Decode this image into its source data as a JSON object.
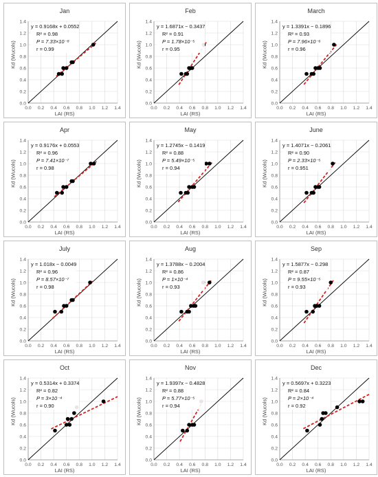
{
  "axis_labels": {
    "x": "LAI (RS)",
    "y": "Kd (Wucols)"
  },
  "chart_data": [
    {
      "type": "scatter",
      "title": "Jan",
      "eq": "y = 0.9168x + 0.0552",
      "r2": "R² = 0.98",
      "p": "P = 7.33×10⁻⁸",
      "r": "r = 0.99",
      "slope": 0.9168,
      "intercept": 0.0552,
      "points": [
        [
          0.48,
          0.5
        ],
        [
          0.53,
          0.5
        ],
        [
          0.55,
          0.6
        ],
        [
          0.6,
          0.6
        ],
        [
          0.68,
          0.7
        ],
        [
          0.7,
          0.7
        ],
        [
          1.02,
          1.0
        ]
      ],
      "xlim": [
        0,
        1.4
      ],
      "ylim": [
        0,
        1.4
      ]
    },
    {
      "type": "scatter",
      "title": "Feb",
      "eq": "y = 1.6871x − 0.3437",
      "r2": "R² = 0.91",
      "p": "P = 1.78×10⁻⁵",
      "r": "r = 0.95",
      "slope": 1.6871,
      "intercept": -0.3437,
      "points": [
        [
          0.43,
          0.5
        ],
        [
          0.5,
          0.5
        ],
        [
          0.52,
          0.5
        ],
        [
          0.55,
          0.6
        ],
        [
          0.58,
          0.6
        ],
        [
          0.6,
          0.6
        ],
        [
          0.78,
          1.0
        ]
      ],
      "xlim": [
        0,
        1.4
      ],
      "ylim": [
        0,
        1.4
      ]
    },
    {
      "type": "scatter",
      "title": "March",
      "eq": "y = 1.3391x − 0.1896",
      "r2": "R² = 0.93",
      "p": "P = 7.96×10⁻⁶",
      "r": "r = 0.96",
      "slope": 1.3391,
      "intercept": -0.1896,
      "points": [
        [
          0.42,
          0.5
        ],
        [
          0.5,
          0.5
        ],
        [
          0.53,
          0.5
        ],
        [
          0.56,
          0.6
        ],
        [
          0.6,
          0.6
        ],
        [
          0.63,
          0.6
        ],
        [
          0.85,
          1.0
        ]
      ],
      "xlim": [
        0,
        1.4
      ],
      "ylim": [
        0,
        1.4
      ]
    },
    {
      "type": "scatter",
      "title": "Apr",
      "eq": "y = 0.9176x + 0.0553",
      "r2": "R² = 0.96",
      "p": "P = 7.41×10⁻⁷",
      "r": "r = 0.98",
      "slope": 0.9176,
      "intercept": 0.0553,
      "points": [
        [
          0.45,
          0.5
        ],
        [
          0.53,
          0.5
        ],
        [
          0.55,
          0.6
        ],
        [
          0.6,
          0.6
        ],
        [
          0.68,
          0.7
        ],
        [
          0.7,
          0.7
        ],
        [
          0.98,
          1.0
        ],
        [
          1.03,
          1.0
        ]
      ],
      "xlim": [
        0,
        1.4
      ],
      "ylim": [
        0,
        1.4
      ]
    },
    {
      "type": "scatter",
      "title": "May",
      "eq": "y = 1.2745x − 0.1419",
      "r2": "R² = 0.88",
      "p": "P = 5.49×10⁻⁵",
      "r": "r = 0.94",
      "slope": 1.2745,
      "intercept": -0.1419,
      "points": [
        [
          0.42,
          0.5
        ],
        [
          0.5,
          0.5
        ],
        [
          0.53,
          0.5
        ],
        [
          0.55,
          0.6
        ],
        [
          0.6,
          0.6
        ],
        [
          0.63,
          0.6
        ],
        [
          0.82,
          1.0
        ],
        [
          0.87,
          1.0
        ]
      ],
      "xlim": [
        0,
        1.4
      ],
      "ylim": [
        0,
        1.4
      ]
    },
    {
      "type": "scatter",
      "title": "June",
      "eq": "y = 1.4071x − 0.2061",
      "r2": "R² = 0.90",
      "p": "P = 2.33×10⁻⁵",
      "r": "r = 0.951",
      "slope": 1.4071,
      "intercept": -0.2061,
      "points": [
        [
          0.42,
          0.5
        ],
        [
          0.5,
          0.5
        ],
        [
          0.53,
          0.5
        ],
        [
          0.56,
          0.6
        ],
        [
          0.6,
          0.6
        ],
        [
          0.62,
          0.6
        ],
        [
          0.83,
          1.0
        ]
      ],
      "xlim": [
        0,
        1.4
      ],
      "ylim": [
        0,
        1.4
      ]
    },
    {
      "type": "scatter",
      "title": "July",
      "eq": "y = 1.018x − 0.0049",
      "r2": "R² = 0.96",
      "p": "P = 8.57×10⁻⁷",
      "r": "r = 0.98",
      "slope": 1.018,
      "intercept": -0.0049,
      "points": [
        [
          0.42,
          0.5
        ],
        [
          0.52,
          0.5
        ],
        [
          0.56,
          0.6
        ],
        [
          0.6,
          0.6
        ],
        [
          0.68,
          0.7
        ],
        [
          0.7,
          0.7
        ],
        [
          0.97,
          1.0
        ]
      ],
      "xlim": [
        0,
        1.4
      ],
      "ylim": [
        0,
        1.4
      ]
    },
    {
      "type": "scatter",
      "title": "Aug",
      "eq": "y = 1.3788x − 0.2004",
      "r2": "R² = 0.86",
      "p": "P = 1×10⁻⁴",
      "r": "r = 0.93",
      "slope": 1.3788,
      "intercept": -0.2004,
      "points": [
        [
          0.43,
          0.5
        ],
        [
          0.52,
          0.5
        ],
        [
          0.55,
          0.5
        ],
        [
          0.58,
          0.6
        ],
        [
          0.62,
          0.6
        ],
        [
          0.65,
          0.6
        ],
        [
          0.77,
          1.0
        ],
        [
          0.87,
          1.0
        ]
      ],
      "xlim": [
        0,
        1.4
      ],
      "ylim": [
        0,
        1.4
      ]
    },
    {
      "type": "scatter",
      "title": "Sep",
      "eq": "y = 1.5877x − 0.298",
      "r2": "R² = 0.87",
      "p": "P = 9.55×10⁻⁵",
      "r": "r = 0.93",
      "slope": 1.5877,
      "intercept": -0.298,
      "points": [
        [
          0.42,
          0.5
        ],
        [
          0.52,
          0.5
        ],
        [
          0.55,
          0.6
        ],
        [
          0.58,
          0.6
        ],
        [
          0.62,
          0.6
        ],
        [
          0.8,
          1.0
        ]
      ],
      "xlim": [
        0,
        1.4
      ],
      "ylim": [
        0,
        1.4
      ]
    },
    {
      "type": "scatter",
      "title": "Oct",
      "eq": "y = 0.5314x + 0.3374",
      "r2": "R² = 0.82",
      "p": "P = 3×10⁻⁴",
      "r": "r = 0.90",
      "slope": 0.5314,
      "intercept": 0.3374,
      "points": [
        [
          0.42,
          0.5
        ],
        [
          0.6,
          0.6
        ],
        [
          0.62,
          0.7
        ],
        [
          0.65,
          0.6
        ],
        [
          0.68,
          0.7
        ],
        [
          0.72,
          0.8
        ],
        [
          0.76,
          0.9
        ],
        [
          1.18,
          1.0
        ]
      ],
      "xlim": [
        0,
        1.4
      ],
      "ylim": [
        0,
        1.4
      ]
    },
    {
      "type": "scatter",
      "title": "Nov",
      "eq": "y = 1.9397x − 0.4828",
      "r2": "R² = 0.88",
      "p": "P = 5.77×10⁻⁵",
      "r": "r = 0.94",
      "slope": 1.9397,
      "intercept": -0.4828,
      "points": [
        [
          0.45,
          0.5
        ],
        [
          0.52,
          0.5
        ],
        [
          0.55,
          0.6
        ],
        [
          0.6,
          0.6
        ],
        [
          0.63,
          0.6
        ],
        [
          0.74,
          1.0
        ]
      ],
      "xlim": [
        0,
        1.4
      ],
      "ylim": [
        0,
        1.4
      ]
    },
    {
      "type": "scatter",
      "title": "Dec",
      "eq": "y = 0.5697x + 0.3223",
      "r2": "R² = 0.84",
      "p": "P = 2×10⁻⁴",
      "r": "r = 0.92",
      "slope": 0.5697,
      "intercept": 0.3223,
      "points": [
        [
          0.43,
          0.5
        ],
        [
          0.63,
          0.6
        ],
        [
          0.66,
          0.7
        ],
        [
          0.68,
          0.8
        ],
        [
          0.72,
          0.8
        ],
        [
          0.9,
          0.9
        ],
        [
          1.25,
          1.0
        ],
        [
          1.3,
          1.0
        ]
      ],
      "xlim": [
        0,
        1.4
      ],
      "ylim": [
        0,
        1.4
      ]
    }
  ],
  "style": {
    "point_color": "#000000",
    "trend_color": "#d42020",
    "identity_color": "#000000",
    "grid_color": "#d9d9d9"
  }
}
